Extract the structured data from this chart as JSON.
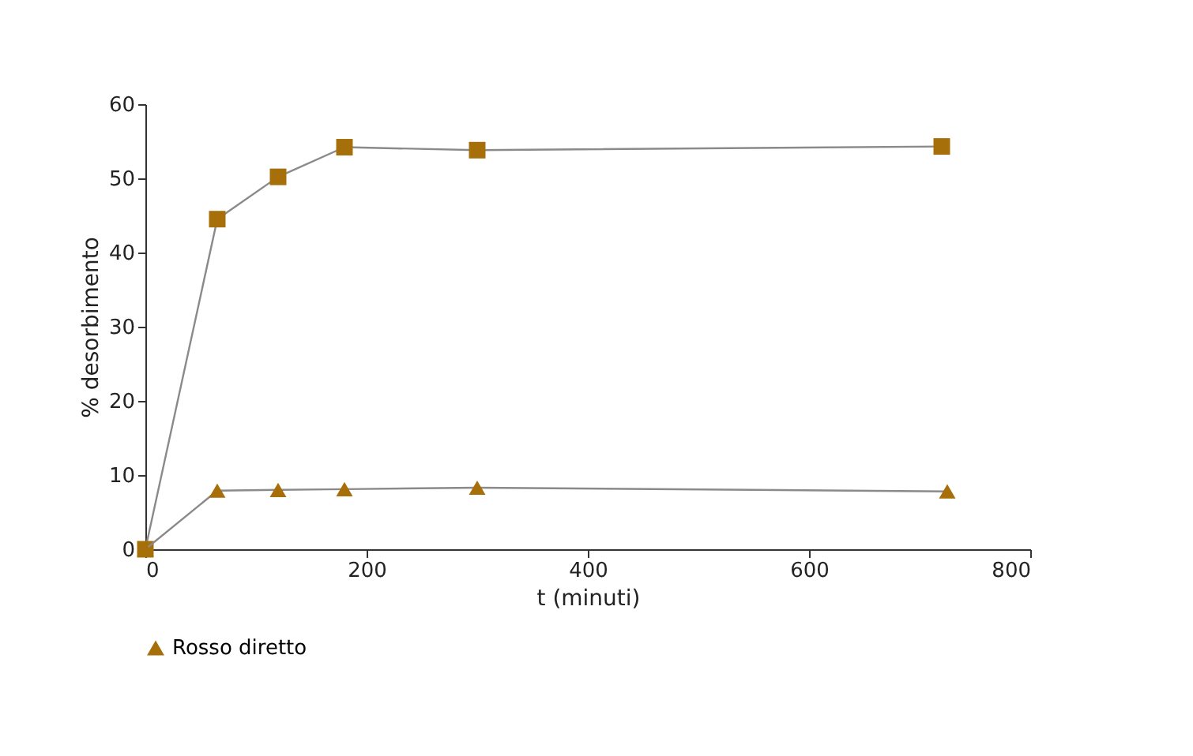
{
  "chart_data": {
    "type": "line",
    "xlabel": "t (minuti)",
    "ylabel": "% desorbimento",
    "xlim": [
      0,
      800
    ],
    "xticks": [
      0,
      200,
      400,
      600,
      800
    ],
    "ylim": [
      0,
      60
    ],
    "yticks": [
      0,
      10,
      20,
      30,
      40,
      50,
      60
    ],
    "grid": false,
    "legend": "bottom",
    "line_style": "solid",
    "series": [
      {
        "color": "#a66f0a",
        "marker": "square",
        "x": [
          0,
          65,
          120,
          180,
          300,
          720
        ],
        "values": [
          0,
          44.5,
          50.2,
          54.2,
          53.8,
          54.3
        ]
      },
      {
        "name": "Rosso diretto",
        "color": "#a66f0a",
        "marker": "triangle",
        "x": [
          0,
          65,
          120,
          180,
          300,
          725
        ],
        "values": [
          0,
          7.9,
          8.0,
          8.1,
          8.3,
          7.8
        ]
      }
    ]
  }
}
